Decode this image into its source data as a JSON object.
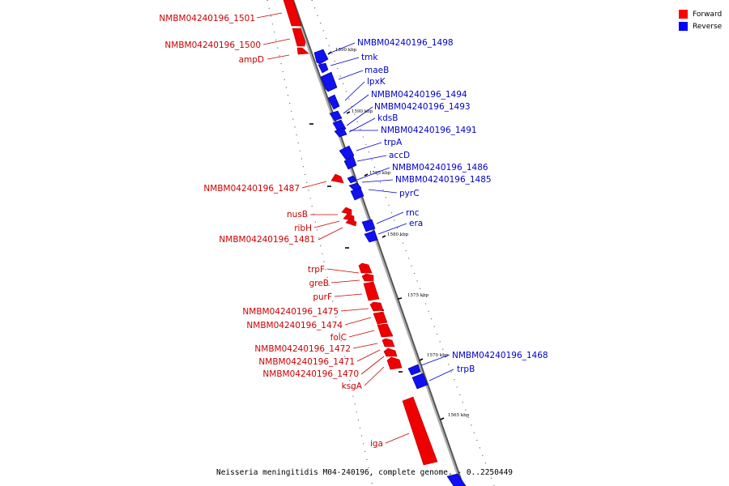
{
  "legend": {
    "forward": {
      "label": "Forward",
      "color": "#ff0000"
    },
    "reverse": {
      "label": "Reverse",
      "color": "#0000ff"
    }
  },
  "caption": "Neisseria meningitidis M04-240196, complete genome. - 0..2250449",
  "ticks": [
    "1590 kbp",
    "1590 kbp",
    "1585 kbp",
    "1580 kbp",
    "1575 kbp",
    "1570 kbp",
    "1565 kbp"
  ],
  "forward_genes": [
    "NMBM04240196_1501",
    "NMBM04240196_1500",
    "ampD",
    "NMBM04240196_1487",
    "nusB",
    "ribH",
    "NMBM04240196_1481",
    "trpF",
    "greB",
    "purF",
    "NMBM04240196_1475",
    "NMBM04240196_1474",
    "folC",
    "NMBM04240196_1472",
    "NMBM04240196_1471",
    "NMBM04240196_1470",
    "ksgA",
    "iga"
  ],
  "reverse_genes": [
    "NMBM04240196_1498",
    "tmk",
    "maeB",
    "lpxK",
    "NMBM04240196_1494",
    "NMBM04240196_1493",
    "kdsB",
    "NMBM04240196_1491",
    "trpA",
    "accD",
    "NMBM04240196_1486",
    "NMBM04240196_1485",
    "pyrC",
    "rnc",
    "era",
    "NMBM04240196_1468",
    "trpB"
  ]
}
